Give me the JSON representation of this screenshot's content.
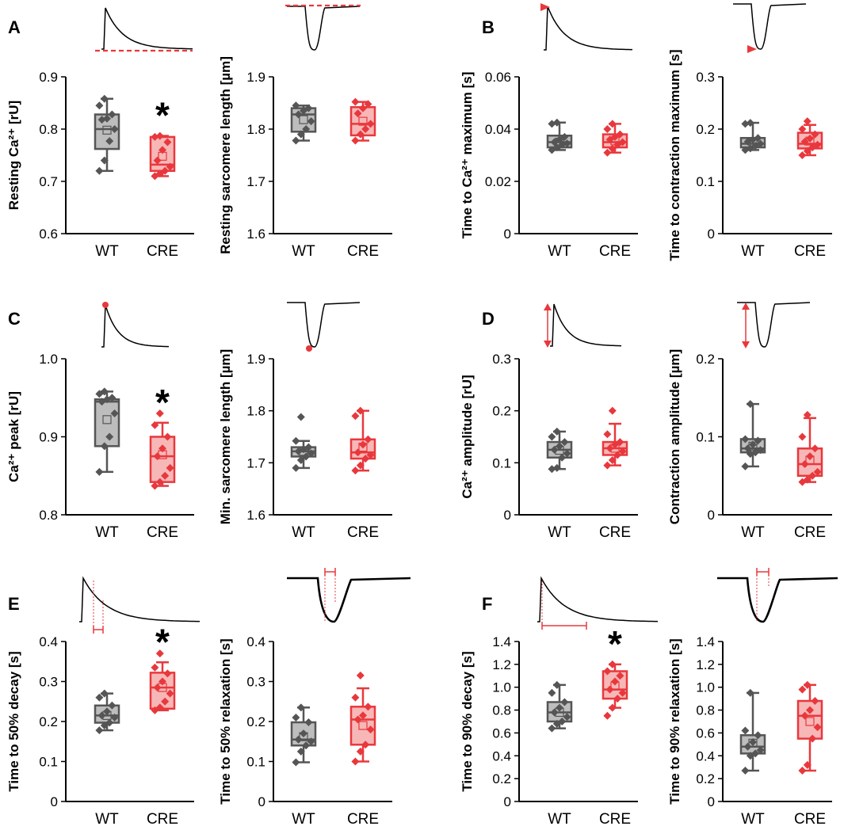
{
  "figure": {
    "panel_letters": [
      "A",
      "B",
      "C",
      "D",
      "E",
      "F"
    ],
    "significance_marker": "*"
  },
  "colors": {
    "WT": {
      "stroke": "#555555",
      "fill": "#bdbdbd",
      "point": "#555555"
    },
    "CRE": {
      "stroke": "#e8383d",
      "fill": "#f7b7b7",
      "point": "#e8383d"
    },
    "annotation": "#e8383d"
  },
  "chart_data": [
    {
      "type": "box",
      "panel": "A",
      "ylabel": "Resting Ca²⁺ [rU]",
      "ylim": [
        0.6,
        0.9
      ],
      "yticks": [
        "0.6",
        "0.7",
        "0.8",
        "0.9"
      ],
      "yticks_values": [
        0.6,
        0.7,
        0.8,
        0.9
      ],
      "categories": [
        "WT",
        "CRE"
      ],
      "significant": [
        false,
        true
      ],
      "inset": "ca-resting",
      "series": [
        {
          "name": "WT",
          "whisker_low": 0.72,
          "q1": 0.762,
          "median": 0.8,
          "q3": 0.828,
          "whisker_high": 0.858,
          "mean": 0.798,
          "points": [
            0.72,
            0.74,
            0.777,
            0.8,
            0.818,
            0.82,
            0.828,
            0.845,
            0.858
          ]
        },
        {
          "name": "CRE",
          "whisker_low": 0.71,
          "q1": 0.72,
          "median": 0.732,
          "q3": 0.785,
          "whisker_high": 0.787,
          "mean": 0.748,
          "points": [
            0.71,
            0.715,
            0.72,
            0.728,
            0.74,
            0.76,
            0.775,
            0.785,
            0.787
          ]
        }
      ]
    },
    {
      "type": "box",
      "panel": "A",
      "ylabel": "Resting sarcomere length [µm]",
      "ylim": [
        1.6,
        1.9
      ],
      "yticks": [
        "1.6",
        "1.7",
        "1.8",
        "1.9"
      ],
      "yticks_values": [
        1.6,
        1.7,
        1.8,
        1.9
      ],
      "categories": [
        "WT",
        "CRE"
      ],
      "significant": [
        false,
        false
      ],
      "inset": "sl-resting",
      "series": [
        {
          "name": "WT",
          "whisker_low": 1.778,
          "q1": 1.795,
          "median": 1.828,
          "q3": 1.84,
          "whisker_high": 1.845,
          "mean": 1.818,
          "points": [
            1.778,
            1.79,
            1.8,
            1.815,
            1.828,
            1.835,
            1.84,
            1.845
          ]
        },
        {
          "name": "CRE",
          "whisker_low": 1.778,
          "q1": 1.788,
          "median": 1.81,
          "q3": 1.842,
          "whisker_high": 1.852,
          "mean": 1.815,
          "points": [
            1.778,
            1.79,
            1.8,
            1.81,
            1.83,
            1.84,
            1.848,
            1.852
          ]
        }
      ]
    },
    {
      "type": "box",
      "panel": "B",
      "ylabel": "Time to Ca²⁺ maximum [s]",
      "ylim": [
        0,
        0.06
      ],
      "yticks": [
        "0",
        "0.02",
        "0.04",
        "0.06"
      ],
      "yticks_values": [
        0,
        0.02,
        0.04,
        0.06
      ],
      "categories": [
        "WT",
        "CRE"
      ],
      "significant": [
        false,
        false
      ],
      "inset": "ca-time-to-max",
      "series": [
        {
          "name": "WT",
          "whisker_low": 0.032,
          "q1": 0.033,
          "median": 0.035,
          "q3": 0.0375,
          "whisker_high": 0.0425,
          "mean": 0.035,
          "points": [
            0.032,
            0.033,
            0.034,
            0.0345,
            0.035,
            0.036,
            0.037,
            0.042,
            0.0425
          ]
        },
        {
          "name": "CRE",
          "whisker_low": 0.031,
          "q1": 0.033,
          "median": 0.035,
          "q3": 0.038,
          "whisker_high": 0.042,
          "mean": 0.0355,
          "points": [
            0.031,
            0.0325,
            0.034,
            0.035,
            0.036,
            0.037,
            0.038,
            0.04,
            0.042
          ]
        }
      ]
    },
    {
      "type": "box",
      "panel": "B",
      "ylabel": "Time to contraction maximum [s]",
      "ylim": [
        0,
        0.3
      ],
      "yticks": [
        "0",
        "0.1",
        "0.2",
        "0.3"
      ],
      "yticks_values": [
        0,
        0.1,
        0.2,
        0.3
      ],
      "categories": [
        "WT",
        "CRE"
      ],
      "significant": [
        false,
        false
      ],
      "inset": "sl-time-to-max",
      "series": [
        {
          "name": "WT",
          "whisker_low": 0.16,
          "q1": 0.165,
          "median": 0.172,
          "q3": 0.183,
          "whisker_high": 0.212,
          "mean": 0.175,
          "points": [
            0.16,
            0.163,
            0.168,
            0.172,
            0.176,
            0.18,
            0.183,
            0.21,
            0.212
          ]
        },
        {
          "name": "CRE",
          "whisker_low": 0.15,
          "q1": 0.163,
          "median": 0.172,
          "q3": 0.193,
          "whisker_high": 0.208,
          "mean": 0.177,
          "points": [
            0.15,
            0.158,
            0.165,
            0.17,
            0.176,
            0.182,
            0.19,
            0.2,
            0.215
          ]
        }
      ]
    },
    {
      "type": "box",
      "panel": "C",
      "ylabel": "Ca²⁺ peak [rU]",
      "ylim": [
        0.8,
        1.0
      ],
      "yticks": [
        "0.8",
        "0.9",
        "1.0"
      ],
      "yticks_values": [
        0.8,
        0.9,
        1.0
      ],
      "categories": [
        "WT",
        "CRE"
      ],
      "significant": [
        false,
        true
      ],
      "inset": "ca-peak",
      "series": [
        {
          "name": "WT",
          "whisker_low": 0.855,
          "q1": 0.888,
          "median": 0.945,
          "q3": 0.948,
          "whisker_high": 0.958,
          "mean": 0.922,
          "points": [
            0.855,
            0.888,
            0.9,
            0.93,
            0.945,
            0.948,
            0.95,
            0.955,
            0.958
          ]
        },
        {
          "name": "CRE",
          "whisker_low": 0.837,
          "q1": 0.842,
          "median": 0.875,
          "q3": 0.9,
          "whisker_high": 0.918,
          "mean": 0.877,
          "points": [
            0.837,
            0.842,
            0.85,
            0.86,
            0.875,
            0.885,
            0.9,
            0.915,
            0.93
          ]
        }
      ]
    },
    {
      "type": "box",
      "panel": "C",
      "ylabel": "Min. sarcomere length [µm]",
      "ylim": [
        1.6,
        1.9
      ],
      "yticks": [
        "1.6",
        "1.7",
        "1.8",
        "1.9"
      ],
      "yticks_values": [
        1.6,
        1.7,
        1.8,
        1.9
      ],
      "categories": [
        "WT",
        "CRE"
      ],
      "significant": [
        false,
        false
      ],
      "inset": "sl-min",
      "series": [
        {
          "name": "WT",
          "whisker_low": 1.69,
          "q1": 1.712,
          "median": 1.722,
          "q3": 1.73,
          "whisker_high": 1.742,
          "mean": 1.722,
          "points": [
            1.69,
            1.705,
            1.712,
            1.718,
            1.722,
            1.726,
            1.73,
            1.742,
            1.788
          ]
        },
        {
          "name": "CRE",
          "whisker_low": 1.685,
          "q1": 1.708,
          "median": 1.72,
          "q3": 1.745,
          "whisker_high": 1.8,
          "mean": 1.73,
          "points": [
            1.685,
            1.695,
            1.708,
            1.715,
            1.72,
            1.735,
            1.745,
            1.79,
            1.8
          ]
        }
      ]
    },
    {
      "type": "box",
      "panel": "D",
      "ylabel": "Ca²⁺ amplitude [rU]",
      "ylim": [
        0,
        0.3
      ],
      "yticks": [
        "0",
        "0.1",
        "0.2",
        "0.3"
      ],
      "yticks_values": [
        0,
        0.1,
        0.2,
        0.3
      ],
      "categories": [
        "WT",
        "CRE"
      ],
      "significant": [
        false,
        false
      ],
      "inset": "ca-amplitude",
      "series": [
        {
          "name": "WT",
          "whisker_low": 0.088,
          "q1": 0.11,
          "median": 0.125,
          "q3": 0.14,
          "whisker_high": 0.16,
          "mean": 0.124,
          "points": [
            0.088,
            0.09,
            0.11,
            0.118,
            0.125,
            0.132,
            0.14,
            0.15,
            0.16
          ]
        },
        {
          "name": "CRE",
          "whisker_low": 0.095,
          "q1": 0.115,
          "median": 0.128,
          "q3": 0.14,
          "whisker_high": 0.175,
          "mean": 0.128,
          "points": [
            0.095,
            0.105,
            0.115,
            0.122,
            0.128,
            0.135,
            0.14,
            0.155,
            0.2
          ]
        }
      ]
    },
    {
      "type": "box",
      "panel": "D",
      "ylabel": "Contraction amplitude [µm]",
      "ylim": [
        0,
        0.2
      ],
      "yticks": [
        "0",
        "0.1",
        "0.2"
      ],
      "yticks_values": [
        0,
        0.1,
        0.2
      ],
      "categories": [
        "WT",
        "CRE"
      ],
      "significant": [
        false,
        false
      ],
      "inset": "sl-amplitude",
      "series": [
        {
          "name": "WT",
          "whisker_low": 0.062,
          "q1": 0.08,
          "median": 0.085,
          "q3": 0.097,
          "whisker_high": 0.142,
          "mean": 0.088,
          "points": [
            0.062,
            0.078,
            0.08,
            0.083,
            0.085,
            0.09,
            0.095,
            0.097,
            0.142
          ]
        },
        {
          "name": "CRE",
          "whisker_low": 0.042,
          "q1": 0.05,
          "median": 0.065,
          "q3": 0.085,
          "whisker_high": 0.124,
          "mean": 0.07,
          "points": [
            0.042,
            0.045,
            0.05,
            0.055,
            0.065,
            0.075,
            0.085,
            0.1,
            0.128
          ]
        }
      ]
    },
    {
      "type": "box",
      "panel": "E",
      "ylabel": "Time to 50% decay [s]",
      "ylim": [
        0,
        0.4
      ],
      "yticks": [
        "0",
        "0.1",
        "0.2",
        "0.3",
        "0.4"
      ],
      "yticks_values": [
        0,
        0.1,
        0.2,
        0.3,
        0.4
      ],
      "categories": [
        "WT",
        "CRE"
      ],
      "significant": [
        false,
        true
      ],
      "inset": "ca-50-decay",
      "series": [
        {
          "name": "WT",
          "whisker_low": 0.178,
          "q1": 0.197,
          "median": 0.215,
          "q3": 0.24,
          "whisker_high": 0.27,
          "mean": 0.215,
          "points": [
            0.178,
            0.19,
            0.197,
            0.21,
            0.215,
            0.225,
            0.24,
            0.26,
            0.27
          ]
        },
        {
          "name": "CRE",
          "whisker_low": 0.228,
          "q1": 0.232,
          "median": 0.285,
          "q3": 0.322,
          "whisker_high": 0.348,
          "mean": 0.285,
          "points": [
            0.228,
            0.235,
            0.25,
            0.27,
            0.285,
            0.3,
            0.32,
            0.335,
            0.37
          ]
        }
      ]
    },
    {
      "type": "box",
      "panel": "E",
      "ylabel": "Time to 50% relaxation [s]",
      "ylim": [
        0,
        0.4
      ],
      "yticks": [
        "0",
        "0.1",
        "0.2",
        "0.3",
        "0.4"
      ],
      "yticks_values": [
        0,
        0.1,
        0.2,
        0.3,
        0.4
      ],
      "categories": [
        "WT",
        "CRE"
      ],
      "significant": [
        false,
        false
      ],
      "inset": "sl-50-relax",
      "series": [
        {
          "name": "WT",
          "whisker_low": 0.098,
          "q1": 0.14,
          "median": 0.155,
          "q3": 0.198,
          "whisker_high": 0.235,
          "mean": 0.162,
          "points": [
            0.098,
            0.125,
            0.14,
            0.15,
            0.155,
            0.17,
            0.198,
            0.21,
            0.235
          ]
        },
        {
          "name": "CRE",
          "whisker_low": 0.1,
          "q1": 0.142,
          "median": 0.205,
          "q3": 0.237,
          "whisker_high": 0.283,
          "mean": 0.19,
          "points": [
            0.1,
            0.125,
            0.142,
            0.18,
            0.205,
            0.215,
            0.237,
            0.26,
            0.315
          ]
        }
      ]
    },
    {
      "type": "box",
      "panel": "F",
      "ylabel": "Time to 90% decay [s]",
      "ylim": [
        0,
        1.4
      ],
      "yticks": [
        "0",
        "0.2",
        "0.4",
        "0.6",
        "0.8",
        "1.0",
        "1.2",
        "1.4"
      ],
      "yticks_values": [
        0,
        0.2,
        0.4,
        0.6,
        0.8,
        1.0,
        1.2,
        1.4
      ],
      "categories": [
        "WT",
        "CRE"
      ],
      "significant": [
        false,
        true
      ],
      "inset": "ca-90-decay",
      "series": [
        {
          "name": "WT",
          "whisker_low": 0.64,
          "q1": 0.7,
          "median": 0.78,
          "q3": 0.87,
          "whisker_high": 1.02,
          "mean": 0.78,
          "points": [
            0.64,
            0.68,
            0.7,
            0.74,
            0.78,
            0.82,
            0.87,
            0.95,
            1.02
          ]
        },
        {
          "name": "CRE",
          "whisker_low": 0.82,
          "q1": 0.9,
          "median": 0.98,
          "q3": 1.14,
          "whisker_high": 1.2,
          "mean": 1.01,
          "points": [
            0.75,
            0.82,
            0.9,
            0.95,
            0.98,
            1.05,
            1.1,
            1.14,
            1.2
          ]
        }
      ]
    },
    {
      "type": "box",
      "panel": "F",
      "ylabel": "Time to 90% relaxation [s]",
      "ylim": [
        0,
        1.4
      ],
      "yticks": [
        "0",
        "0.2",
        "0.4",
        "0.6",
        "0.8",
        "1.0",
        "1.2",
        "1.4"
      ],
      "yticks_values": [
        0,
        0.2,
        0.4,
        0.6,
        0.8,
        1.0,
        1.2,
        1.4
      ],
      "categories": [
        "WT",
        "CRE"
      ],
      "significant": [
        false,
        false
      ],
      "inset": "sl-90-relax",
      "series": [
        {
          "name": "WT",
          "whisker_low": 0.27,
          "q1": 0.42,
          "median": 0.48,
          "q3": 0.58,
          "whisker_high": 0.95,
          "mean": 0.51,
          "points": [
            0.27,
            0.4,
            0.42,
            0.45,
            0.48,
            0.52,
            0.58,
            0.62,
            0.95
          ]
        },
        {
          "name": "CRE",
          "whisker_low": 0.27,
          "q1": 0.55,
          "median": 0.75,
          "q3": 0.88,
          "whisker_high": 1.02,
          "mean": 0.7,
          "points": [
            0.27,
            0.32,
            0.55,
            0.65,
            0.75,
            0.8,
            0.88,
            0.98,
            1.02
          ]
        }
      ]
    }
  ]
}
